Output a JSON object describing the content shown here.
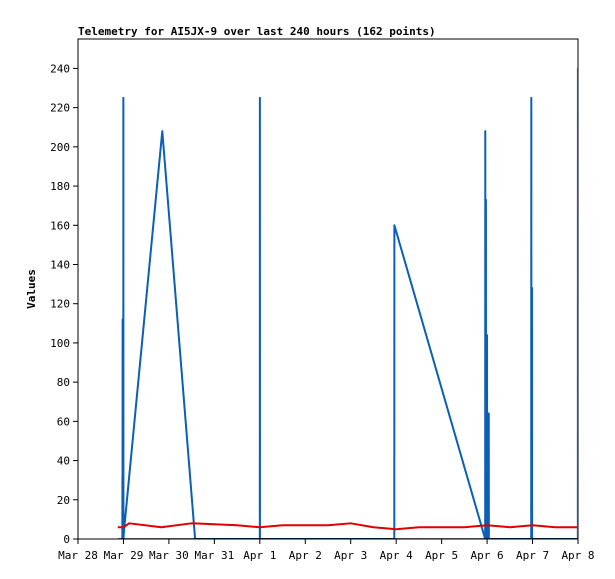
{
  "chart_data": {
    "type": "line",
    "title": "Telemetry for AI5JX-9 over last 240 hours (162 points)",
    "xlabel": "",
    "ylabel": "Values",
    "ylim": [
      0,
      255
    ],
    "xlim": [
      "2025-03-28T00:00",
      "2025-04-08T00:00"
    ],
    "x_tick_labels": [
      "Mar 28",
      "Mar 29",
      "Mar 30",
      "Mar 31",
      "Apr 1",
      "Apr 2",
      "Apr 3",
      "Apr 4",
      "Apr 5",
      "Apr 6",
      "Apr 7",
      "Apr 8"
    ],
    "y_ticks": [
      0,
      20,
      40,
      60,
      80,
      100,
      120,
      140,
      160,
      180,
      200,
      220,
      240
    ],
    "grid": false,
    "legend": "none",
    "series": [
      {
        "color": "#0b5fb5",
        "points": [
          [
            "2025-03-28T23:25",
            0
          ],
          [
            "2025-03-28T23:28",
            32
          ],
          [
            "2025-03-28T23:31",
            0
          ],
          [
            "2025-03-28T23:34",
            112
          ],
          [
            "2025-03-28T23:37",
            0
          ],
          [
            "2025-03-28T23:40",
            55
          ],
          [
            "2025-03-28T23:43",
            0
          ],
          [
            "2025-03-28T23:55",
            0
          ],
          [
            "2025-03-28T23:57",
            225
          ],
          [
            "2025-03-28T23:59",
            0
          ],
          [
            "2025-03-29T00:10",
            3
          ],
          [
            "2025-03-29T20:30",
            208
          ],
          [
            "2025-03-30T13:50",
            0
          ],
          [
            "2025-04-01T00:00",
            0
          ],
          [
            "2025-04-01T00:02",
            225
          ],
          [
            "2025-04-01T00:04",
            0
          ],
          [
            "2025-04-03T23:00",
            0
          ],
          [
            "2025-04-03T23:03",
            160
          ],
          [
            "2025-04-05T23:00",
            0
          ],
          [
            "2025-04-05T23:03",
            208
          ],
          [
            "2025-04-05T23:06",
            0
          ],
          [
            "2025-04-05T23:20",
            0
          ],
          [
            "2025-04-05T23:23",
            173
          ],
          [
            "2025-04-05T23:26",
            0
          ],
          [
            "2025-04-05T23:55",
            0
          ],
          [
            "2025-04-05T23:58",
            104
          ],
          [
            "2025-04-06T00:01",
            35
          ],
          [
            "2025-04-06T00:50",
            0
          ],
          [
            "2025-04-06T00:53",
            64
          ],
          [
            "2025-04-06T00:56",
            0
          ],
          [
            "2025-04-06T23:18",
            0
          ],
          [
            "2025-04-06T23:21",
            225
          ],
          [
            "2025-04-06T23:24",
            0
          ],
          [
            "2025-04-06T23:40",
            0
          ],
          [
            "2025-04-06T23:43",
            128
          ],
          [
            "2025-04-06T23:46",
            0
          ],
          [
            "2025-04-07T23:55",
            0
          ],
          [
            "2025-04-07T23:57",
            240
          ],
          [
            "2025-04-07T23:59",
            0
          ],
          [
            "2025-04-08T00:01",
            240
          ],
          [
            "2025-04-08T00:03",
            0
          ]
        ]
      },
      {
        "color": "#e00000",
        "points": [
          [
            "2025-03-28T21:00",
            6
          ],
          [
            "2025-03-29T00:00",
            6
          ],
          [
            "2025-03-29T03:00",
            8
          ],
          [
            "2025-03-29T20:00",
            6
          ],
          [
            "2025-03-30T12:00",
            8
          ],
          [
            "2025-03-31T12:00",
            7
          ],
          [
            "2025-04-01T00:00",
            6
          ],
          [
            "2025-04-01T12:00",
            7
          ],
          [
            "2025-04-02T12:00",
            7
          ],
          [
            "2025-04-03T00:00",
            8
          ],
          [
            "2025-04-03T12:00",
            6
          ],
          [
            "2025-04-04T00:00",
            5
          ],
          [
            "2025-04-04T12:00",
            6
          ],
          [
            "2025-04-05T12:00",
            6
          ],
          [
            "2025-04-06T00:00",
            7
          ],
          [
            "2025-04-06T12:00",
            6
          ],
          [
            "2025-04-07T00:00",
            7
          ],
          [
            "2025-04-07T12:00",
            6
          ],
          [
            "2025-04-08T00:00",
            6
          ],
          [
            "2025-04-08T12:00",
            7
          ]
        ]
      },
      {
        "color": "#000000",
        "points": [
          [
            "2025-03-28T21:00",
            0
          ],
          [
            "2025-04-08T12:00",
            0
          ]
        ]
      }
    ]
  }
}
